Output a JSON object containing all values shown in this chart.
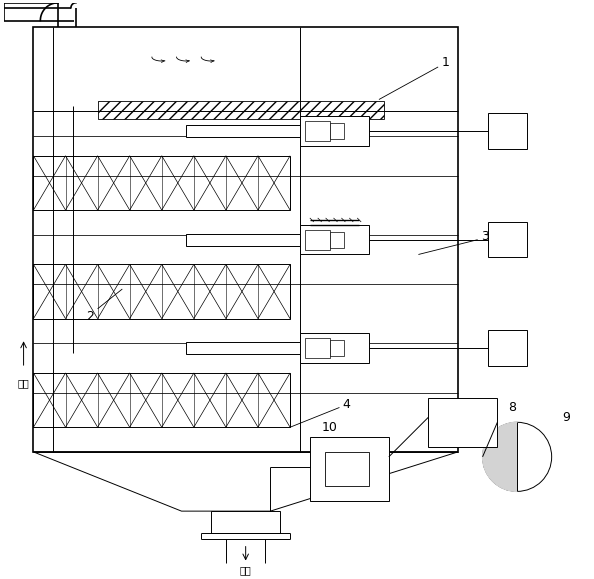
{
  "fig_w": 5.94,
  "fig_h": 5.79,
  "dpi": 100,
  "lc": "#000000",
  "bg": "#ffffff",
  "lw": 0.7,
  "lw2": 1.2
}
